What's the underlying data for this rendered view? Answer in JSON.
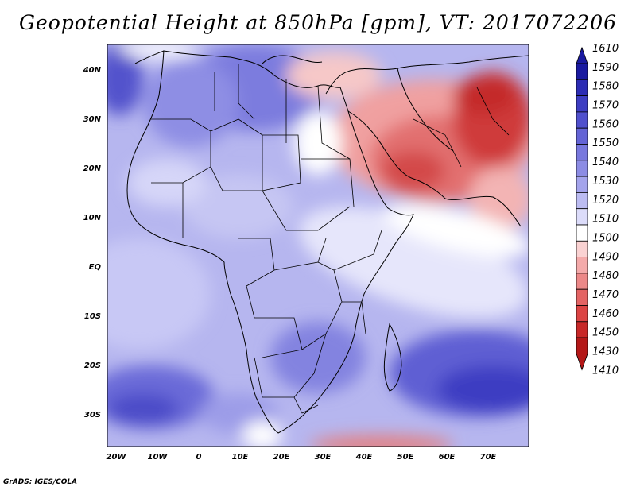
{
  "title": "Geopotential Height at 850hPa [gpm], VT: 2017072206",
  "footer": "GrADS: IGES/COLA",
  "map": {
    "variable": "Geopotential Height",
    "level": "850hPa",
    "units": "gpm",
    "valid_time": "2017072206",
    "lon_range": [
      -22,
      80
    ],
    "lat_range": [
      -37,
      45
    ],
    "lat_labels": [
      {
        "value": 40,
        "text": "40N"
      },
      {
        "value": 30,
        "text": "30N"
      },
      {
        "value": 20,
        "text": "20N"
      },
      {
        "value": 10,
        "text": "10N"
      },
      {
        "value": 0,
        "text": "EQ"
      },
      {
        "value": -10,
        "text": "10S"
      },
      {
        "value": -20,
        "text": "20S"
      },
      {
        "value": -30,
        "text": "30S"
      }
    ],
    "lon_labels": [
      {
        "value": -20,
        "text": "20W"
      },
      {
        "value": -10,
        "text": "10W"
      },
      {
        "value": 0,
        "text": "0"
      },
      {
        "value": 10,
        "text": "10E"
      },
      {
        "value": 20,
        "text": "20E"
      },
      {
        "value": 30,
        "text": "30E"
      },
      {
        "value": 40,
        "text": "40E"
      },
      {
        "value": 50,
        "text": "50E"
      },
      {
        "value": 60,
        "text": "60E"
      },
      {
        "value": 70,
        "text": "70E"
      }
    ]
  },
  "colorbar": {
    "labels": [
      "1610",
      "1590",
      "1580",
      "1570",
      "1560",
      "1550",
      "1540",
      "1530",
      "1520",
      "1510",
      "1500",
      "1490",
      "1480",
      "1470",
      "1460",
      "1450",
      "1430",
      "1410"
    ],
    "colors": [
      "#1a1aa0",
      "#2c2cb4",
      "#3d3dc2",
      "#5050cd",
      "#6464d6",
      "#7878de",
      "#8c8ce4",
      "#a4a4ec",
      "#bcbcf2",
      "#dcdcfa",
      "#ffffff",
      "#fad2d2",
      "#f4aaaa",
      "#ec8888",
      "#e46464",
      "#dc4444",
      "#c82828",
      "#b41818"
    ]
  }
}
